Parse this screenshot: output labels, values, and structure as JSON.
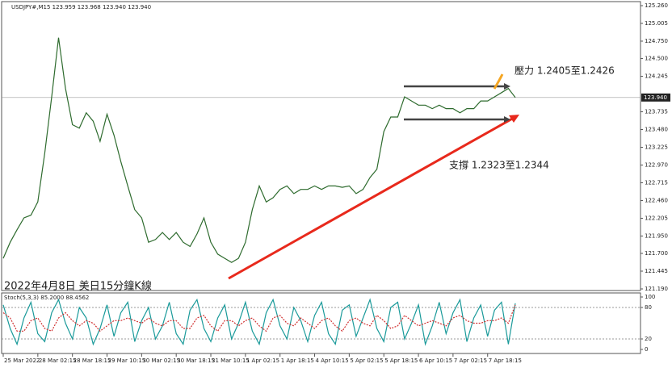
{
  "chart_data": [
    {
      "type": "line",
      "title": "USDJPY#,M15  123.959 123.968 123.940 123.940",
      "subtitle": "2022年4月8日 美日15分鐘K線",
      "annotations": [
        "壓力 1.2405至1.2426",
        "支撐 1.2323至1.2344"
      ],
      "xlim": [
        0,
        74
      ],
      "ylim": [
        121.19,
        125.26
      ],
      "yticks": [
        {
          "value": 125.26,
          "label": "125.260"
        },
        125.005,
        {
          "value": 124.75,
          "label": "124.750"
        },
        {
          "value": 124.5,
          "label": "124.500"
        },
        124.245,
        123.735,
        {
          "value": 123.48,
          "label": "123.480"
        },
        123.225,
        {
          "value": 122.97,
          "label": "122.970"
        },
        122.715,
        {
          "value": 122.46,
          "label": "122.460"
        },
        122.205,
        {
          "value": 121.95,
          "label": "121.950"
        },
        {
          "value": 121.7,
          "label": "121.700"
        },
        121.445,
        {
          "value": 121.19,
          "label": "121.190"
        }
      ],
      "current_price": {
        "value": 123.94,
        "label": "123.940"
      },
      "series": [
        {
          "color": "#2e6b2e",
          "values": [
            121.63,
            121.86,
            122.04,
            122.21,
            122.25,
            122.44,
            123.14,
            123.95,
            124.8,
            124.07,
            123.55,
            123.5,
            123.72,
            123.6,
            123.31,
            123.7,
            123.4,
            123.02,
            122.67,
            122.33,
            122.21,
            121.86,
            121.9,
            122.0,
            121.9,
            122.0,
            121.86,
            121.8,
            121.98,
            122.21,
            121.86,
            121.69,
            121.63,
            121.57,
            121.63,
            121.86,
            122.33,
            122.67,
            122.44,
            122.5,
            122.62,
            122.67,
            122.56,
            122.62,
            122.62,
            122.67,
            122.62,
            122.67,
            122.67,
            122.65,
            122.67,
            122.56,
            122.62,
            122.79,
            122.91,
            123.45,
            123.66,
            123.66,
            123.95,
            123.89,
            123.83,
            123.83,
            123.78,
            123.83,
            123.78,
            123.78,
            123.72,
            123.78,
            123.78,
            123.89,
            123.89,
            123.95,
            124.01,
            124.07,
            123.94
          ]
        }
      ]
    },
    {
      "type": "line",
      "title": "Stoch(5,3,3) 85.2000 88.4562",
      "xlim": [
        0,
        74
      ],
      "ylim": [
        0,
        100
      ],
      "yticks": [
        100,
        80,
        20,
        0
      ],
      "levels": [
        80,
        20
      ],
      "xticks": [
        {
          "value": 0,
          "label": "25 Mar 2022"
        },
        {
          "value": 5,
          "label": "28 Mar 02:15"
        },
        {
          "value": 10,
          "label": "28 Mar 18:15"
        },
        {
          "value": 15,
          "label": "29 Mar 10:15"
        },
        {
          "value": 20,
          "label": "30 Mar 02:15"
        },
        {
          "value": 25,
          "label": "30 Mar 18:15"
        },
        {
          "value": 30,
          "label": "31 Mar 10:15"
        },
        {
          "value": 35,
          "label": "1 Apr 02:15"
        },
        {
          "value": 40,
          "label": "1 Apr 18:15"
        },
        {
          "value": 45,
          "label": "4 Apr 10:15"
        },
        {
          "value": 50,
          "label": "5 Apr 02:15"
        },
        {
          "value": 55,
          "label": "5 Apr 18:15"
        },
        {
          "value": 60,
          "label": "6 Apr 10:15"
        },
        {
          "value": 65,
          "label": "7 Apr 02:15"
        },
        {
          "value": 70,
          "label": "7 Apr 18:15"
        }
      ],
      "series": [
        {
          "color": "#1a9a9a",
          "dash": false,
          "values": [
            85,
            40,
            10,
            60,
            90,
            30,
            15,
            70,
            95,
            50,
            20,
            80,
            60,
            10,
            40,
            85,
            25,
            70,
            90,
            15,
            55,
            80,
            20,
            45,
            90,
            30,
            10,
            75,
            95,
            40,
            15,
            60,
            85,
            20,
            50,
            90,
            35,
            10,
            70,
            95,
            45,
            20,
            80,
            55,
            15,
            65,
            90,
            30,
            10,
            75,
            85,
            25,
            60,
            95,
            40,
            15,
            80,
            90,
            20,
            50,
            85,
            10,
            45,
            90,
            30,
            70,
            95,
            15,
            60,
            85,
            25,
            75,
            90,
            10,
            88
          ]
        },
        {
          "color": "#d03030",
          "dash": true,
          "values": [
            70,
            60,
            35,
            35,
            55,
            60,
            40,
            35,
            60,
            70,
            55,
            45,
            55,
            50,
            35,
            45,
            55,
            55,
            60,
            55,
            50,
            60,
            50,
            45,
            55,
            55,
            40,
            40,
            60,
            65,
            45,
            35,
            55,
            55,
            45,
            55,
            60,
            45,
            35,
            60,
            65,
            50,
            45,
            60,
            50,
            40,
            55,
            60,
            45,
            35,
            55,
            60,
            50,
            45,
            65,
            55,
            40,
            45,
            65,
            55,
            45,
            50,
            55,
            50,
            45,
            60,
            65,
            55,
            50,
            50,
            55,
            55,
            60,
            50,
            85
          ]
        }
      ]
    }
  ]
}
